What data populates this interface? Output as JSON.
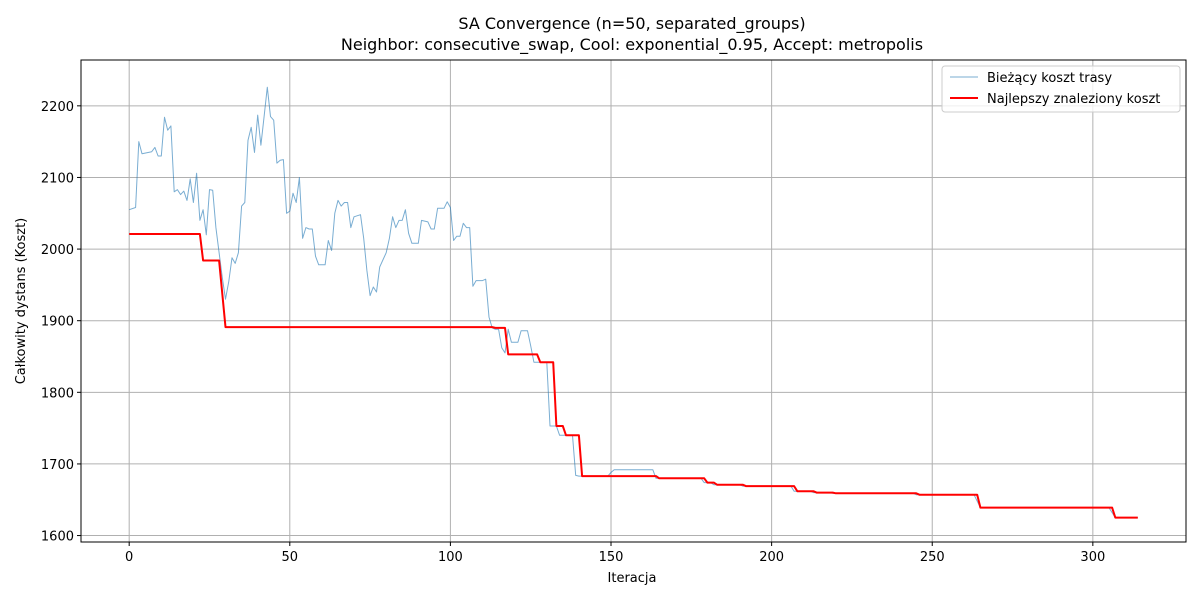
{
  "chart_data": {
    "type": "line",
    "title": "SA Convergence (n=50, separated_groups)",
    "subtitle": "Neighbor: consecutive_swap, Cool: exponential_0.95, Accept: metropolis",
    "xlabel": "Iteracja",
    "ylabel": "Całkowity dystans (Koszt)",
    "xlim": [
      -15,
      329
    ],
    "ylim": [
      1591,
      2264
    ],
    "xticks": [
      0,
      50,
      100,
      150,
      200,
      250,
      300
    ],
    "yticks": [
      1600,
      1700,
      1800,
      1900,
      2000,
      2100,
      2200
    ],
    "grid": true,
    "legend_position": "top-right",
    "series": [
      {
        "name": "Bieżący koszt trasy",
        "color": "#1f77b4",
        "points": [
          [
            0,
            2055
          ],
          [
            2,
            2058
          ],
          [
            3,
            2150
          ],
          [
            4,
            2133
          ],
          [
            7,
            2136
          ],
          [
            8,
            2142
          ],
          [
            9,
            2130
          ],
          [
            10,
            2130
          ],
          [
            11,
            2184
          ],
          [
            12,
            2166
          ],
          [
            13,
            2172
          ],
          [
            14,
            2080
          ],
          [
            15,
            2083
          ],
          [
            16,
            2076
          ],
          [
            17,
            2081
          ],
          [
            18,
            2068
          ],
          [
            19,
            2098
          ],
          [
            20,
            2065
          ],
          [
            21,
            2106
          ],
          [
            22,
            2040
          ],
          [
            23,
            2055
          ],
          [
            24,
            2020
          ],
          [
            25,
            2083
          ],
          [
            26,
            2082
          ],
          [
            27,
            2030
          ],
          [
            28,
            1995
          ],
          [
            29,
            1960
          ],
          [
            30,
            1930
          ],
          [
            31,
            1955
          ],
          [
            32,
            1988
          ],
          [
            33,
            1980
          ],
          [
            34,
            1995
          ],
          [
            35,
            2060
          ],
          [
            36,
            2065
          ],
          [
            37,
            2152
          ],
          [
            38,
            2170
          ],
          [
            39,
            2135
          ],
          [
            40,
            2187
          ],
          [
            41,
            2145
          ],
          [
            42,
            2185
          ],
          [
            43,
            2226
          ],
          [
            44,
            2185
          ],
          [
            45,
            2180
          ],
          [
            46,
            2120
          ],
          [
            47,
            2124
          ],
          [
            48,
            2125
          ],
          [
            49,
            2050
          ],
          [
            50,
            2053
          ],
          [
            51,
            2078
          ],
          [
            52,
            2065
          ],
          [
            53,
            2100
          ],
          [
            54,
            2015
          ],
          [
            55,
            2030
          ],
          [
            56,
            2028
          ],
          [
            57,
            2028
          ],
          [
            58,
            1990
          ],
          [
            59,
            1978
          ],
          [
            60,
            1978
          ],
          [
            61,
            1978
          ],
          [
            62,
            2012
          ],
          [
            63,
            1998
          ],
          [
            64,
            2050
          ],
          [
            65,
            2068
          ],
          [
            66,
            2060
          ],
          [
            67,
            2065
          ],
          [
            68,
            2065
          ],
          [
            69,
            2030
          ],
          [
            70,
            2045
          ],
          [
            72,
            2048
          ],
          [
            73,
            2015
          ],
          [
            74,
            1970
          ],
          [
            75,
            1935
          ],
          [
            76,
            1947
          ],
          [
            77,
            1940
          ],
          [
            78,
            1975
          ],
          [
            80,
            1995
          ],
          [
            81,
            2015
          ],
          [
            82,
            2045
          ],
          [
            83,
            2030
          ],
          [
            84,
            2040
          ],
          [
            85,
            2040
          ],
          [
            86,
            2055
          ],
          [
            87,
            2022
          ],
          [
            88,
            2008
          ],
          [
            90,
            2008
          ],
          [
            91,
            2040
          ],
          [
            93,
            2038
          ],
          [
            94,
            2028
          ],
          [
            95,
            2028
          ],
          [
            96,
            2057
          ],
          [
            98,
            2057
          ],
          [
            99,
            2066
          ],
          [
            100,
            2058
          ],
          [
            101,
            2012
          ],
          [
            102,
            2018
          ],
          [
            103,
            2018
          ],
          [
            104,
            2036
          ],
          [
            105,
            2030
          ],
          [
            106,
            2030
          ],
          [
            107,
            1948
          ],
          [
            108,
            1956
          ],
          [
            110,
            1956
          ],
          [
            111,
            1958
          ],
          [
            112,
            1905
          ],
          [
            113,
            1890
          ],
          [
            114,
            1888
          ],
          [
            115,
            1888
          ],
          [
            116,
            1862
          ],
          [
            117,
            1855
          ],
          [
            118,
            1888
          ],
          [
            119,
            1870
          ],
          [
            120,
            1870
          ],
          [
            121,
            1870
          ],
          [
            122,
            1886
          ],
          [
            124,
            1886
          ],
          [
            125,
            1865
          ],
          [
            126,
            1842
          ],
          [
            127,
            1842
          ],
          [
            128,
            1842
          ],
          [
            129,
            1842
          ],
          [
            130,
            1842
          ],
          [
            131,
            1753
          ],
          [
            133,
            1753
          ],
          [
            134,
            1740
          ],
          [
            137,
            1740
          ],
          [
            138,
            1740
          ],
          [
            139,
            1684
          ],
          [
            140,
            1683
          ],
          [
            149,
            1683
          ],
          [
            150,
            1688
          ],
          [
            151,
            1692
          ],
          [
            163,
            1692
          ],
          [
            164,
            1680
          ],
          [
            178,
            1680
          ],
          [
            179,
            1674
          ],
          [
            181,
            1674
          ],
          [
            182,
            1671
          ],
          [
            190,
            1671
          ],
          [
            191,
            1669
          ],
          [
            206,
            1669
          ],
          [
            207,
            1662
          ],
          [
            212,
            1662
          ],
          [
            213,
            1660
          ],
          [
            218,
            1660
          ],
          [
            219,
            1659
          ],
          [
            244,
            1659
          ],
          [
            245,
            1657
          ],
          [
            263,
            1657
          ],
          [
            265,
            1639
          ],
          [
            305,
            1639
          ],
          [
            307,
            1625
          ],
          [
            314,
            1625
          ]
        ]
      },
      {
        "name": "Najlepszy znaleziony koszt",
        "color": "#ff0000",
        "step": true,
        "points": [
          [
            0,
            2021
          ],
          [
            22,
            2021
          ],
          [
            23,
            1984
          ],
          [
            28,
            1984
          ],
          [
            30,
            1891
          ],
          [
            113,
            1891
          ],
          [
            114,
            1890
          ],
          [
            117,
            1890
          ],
          [
            118,
            1853
          ],
          [
            127,
            1853
          ],
          [
            128,
            1842
          ],
          [
            132,
            1842
          ],
          [
            133,
            1753
          ],
          [
            135,
            1753
          ],
          [
            136,
            1740
          ],
          [
            140,
            1740
          ],
          [
            141,
            1683
          ],
          [
            164,
            1683
          ],
          [
            165,
            1680
          ],
          [
            179,
            1680
          ],
          [
            180,
            1674
          ],
          [
            182,
            1674
          ],
          [
            183,
            1671
          ],
          [
            191,
            1671
          ],
          [
            192,
            1669
          ],
          [
            207,
            1669
          ],
          [
            208,
            1662
          ],
          [
            213,
            1662
          ],
          [
            214,
            1660
          ],
          [
            219,
            1660
          ],
          [
            220,
            1659
          ],
          [
            245,
            1659
          ],
          [
            246,
            1657
          ],
          [
            264,
            1657
          ],
          [
            265,
            1639
          ],
          [
            306,
            1639
          ],
          [
            307,
            1625
          ],
          [
            314,
            1625
          ]
        ]
      }
    ]
  }
}
